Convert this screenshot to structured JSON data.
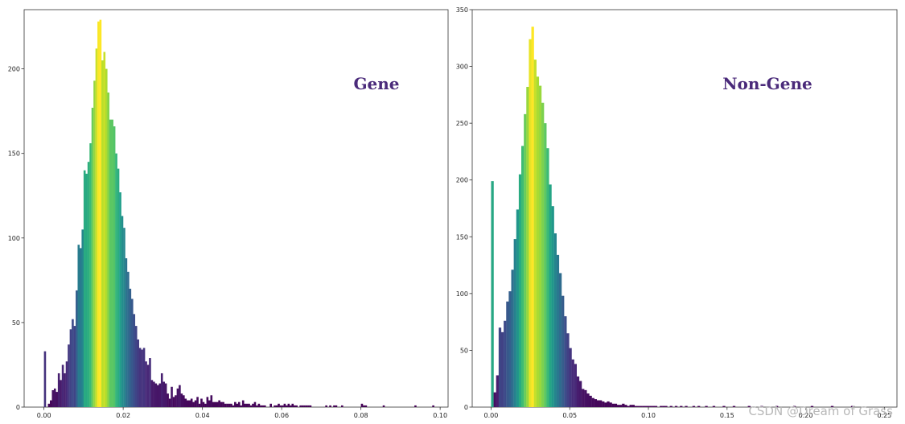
{
  "chart_data": [
    {
      "type": "bar",
      "panel": "left",
      "label": "Gene",
      "colormap": "viridis",
      "xlim": [
        -0.005,
        0.102
      ],
      "ylim": [
        0,
        235
      ],
      "bin_width": 0.0005,
      "xticks": [
        0.0,
        0.02,
        0.04,
        0.06,
        0.08,
        0.1
      ],
      "xtick_labels": [
        "0.00",
        "0.02",
        "0.04",
        "0.06",
        "0.08",
        "0.10"
      ],
      "yticks": [
        0,
        50,
        100,
        150,
        200
      ],
      "ytick_labels": [
        "0",
        "50",
        "100",
        "150",
        "200"
      ],
      "x": [
        0.0,
        0.0005,
        0.001,
        0.0015,
        0.002,
        0.0025,
        0.003,
        0.0035,
        0.004,
        0.0045,
        0.005,
        0.0055,
        0.006,
        0.0065,
        0.007,
        0.0075,
        0.008,
        0.0085,
        0.009,
        0.0095,
        0.01,
        0.0105,
        0.011,
        0.0115,
        0.012,
        0.0125,
        0.013,
        0.0135,
        0.014,
        0.0145,
        0.015,
        0.0155,
        0.016,
        0.0165,
        0.017,
        0.0175,
        0.018,
        0.0185,
        0.019,
        0.0195,
        0.02,
        0.0205,
        0.021,
        0.0215,
        0.022,
        0.0225,
        0.023,
        0.0235,
        0.024,
        0.0245,
        0.025,
        0.0255,
        0.026,
        0.0265,
        0.027,
        0.0275,
        0.028,
        0.0285,
        0.029,
        0.0295,
        0.03,
        0.0305,
        0.031,
        0.0315,
        0.032,
        0.0325,
        0.033,
        0.0335,
        0.034,
        0.0345,
        0.035,
        0.0355,
        0.036,
        0.0365,
        0.037,
        0.0375,
        0.038,
        0.0385,
        0.039,
        0.0395,
        0.04,
        0.0405,
        0.041,
        0.0415,
        0.042,
        0.0425,
        0.043,
        0.0435,
        0.044,
        0.0445,
        0.045,
        0.0455,
        0.046,
        0.0465,
        0.047,
        0.0475,
        0.048,
        0.0485,
        0.049,
        0.0495,
        0.05,
        0.0505,
        0.051,
        0.0515,
        0.052,
        0.0525,
        0.053,
        0.0535,
        0.054,
        0.0545,
        0.055,
        0.0555,
        0.056,
        0.0565,
        0.057,
        0.0575,
        0.058,
        0.0585,
        0.059,
        0.0595,
        0.06,
        0.0605,
        0.061,
        0.0615,
        0.062,
        0.0625,
        0.063,
        0.0635,
        0.064,
        0.0645,
        0.065,
        0.0655,
        0.066,
        0.0665,
        0.067,
        0.0675,
        0.068,
        0.0685,
        0.069,
        0.0695,
        0.07,
        0.0705,
        0.071,
        0.0715,
        0.072,
        0.0725,
        0.073,
        0.0735,
        0.074,
        0.0745,
        0.075,
        0.0755,
        0.076,
        0.0765,
        0.077,
        0.0775,
        0.078,
        0.0785,
        0.079,
        0.0795,
        0.08,
        0.0805,
        0.081,
        0.0815,
        0.082,
        0.0825,
        0.083,
        0.0835,
        0.084,
        0.0845,
        0.085,
        0.0855,
        0.086,
        0.0865,
        0.087,
        0.0875,
        0.088,
        0.0885,
        0.089,
        0.0895,
        0.09,
        0.0905,
        0.091,
        0.0915,
        0.092,
        0.0925,
        0.093,
        0.0935,
        0.094,
        0.0945,
        0.095,
        0.0955,
        0.096,
        0.0965,
        0.097,
        0.0975,
        0.098
      ],
      "values": [
        33,
        0,
        2,
        4,
        10,
        11,
        9,
        20,
        16,
        25,
        20,
        27,
        37,
        46,
        52,
        48,
        69,
        96,
        94,
        105,
        140,
        138,
        145,
        156,
        177,
        193,
        212,
        228,
        229,
        205,
        210,
        200,
        186,
        170,
        170,
        166,
        150,
        141,
        127,
        113,
        106,
        88,
        80,
        70,
        64,
        55,
        48,
        40,
        35,
        34,
        35,
        27,
        25,
        29,
        16,
        15,
        14,
        13,
        14,
        20,
        15,
        14,
        8,
        5,
        12,
        6,
        7,
        11,
        13,
        8,
        7,
        5,
        4,
        4,
        5,
        3,
        4,
        6,
        2,
        5,
        3,
        2,
        6,
        4,
        7,
        3,
        3,
        3,
        4,
        3,
        3,
        2,
        2,
        2,
        2,
        1,
        3,
        2,
        3,
        1,
        4,
        2,
        2,
        2,
        1,
        2,
        3,
        1,
        2,
        1,
        1,
        1,
        0,
        0,
        2,
        0,
        1,
        1,
        2,
        1,
        1,
        2,
        1,
        2,
        1,
        2,
        1,
        1,
        0,
        1,
        1,
        1,
        1,
        1,
        1,
        0,
        0,
        0,
        0,
        0,
        0,
        0,
        1,
        0,
        1,
        0,
        1,
        1,
        0,
        0,
        1,
        0,
        0,
        0,
        0,
        0,
        0,
        0,
        0,
        0,
        2,
        1,
        1,
        0,
        0,
        0,
        0,
        0,
        0,
        0,
        0,
        1,
        0,
        0,
        0,
        0,
        0,
        0,
        0,
        0,
        0,
        0,
        0,
        0,
        0,
        0,
        0,
        1,
        0,
        0,
        0,
        0,
        0,
        0,
        0,
        0,
        1
      ]
    },
    {
      "type": "bar",
      "panel": "right",
      "label": "Non-Gene",
      "colormap": "viridis",
      "xlim": [
        -0.012,
        0.258
      ],
      "ylim": [
        0,
        350
      ],
      "bin_width": 0.0016,
      "xticks": [
        0.0,
        0.05,
        0.1,
        0.15,
        0.2,
        0.25
      ],
      "xtick_labels": [
        "0.00",
        "0.05",
        "0.10",
        "0.15",
        "0.20",
        "0.25"
      ],
      "yticks": [
        0,
        50,
        100,
        150,
        200,
        250,
        300,
        350
      ],
      "ytick_labels": [
        "0",
        "50",
        "100",
        "150",
        "200",
        "250",
        "300",
        "350"
      ],
      "x": [
        0.0,
        0.0016,
        0.0032,
        0.0048,
        0.0064,
        0.008,
        0.0096,
        0.0112,
        0.0128,
        0.0144,
        0.016,
        0.0176,
        0.0192,
        0.0208,
        0.0224,
        0.024,
        0.0256,
        0.0272,
        0.0288,
        0.0304,
        0.032,
        0.0336,
        0.0352,
        0.0368,
        0.0384,
        0.04,
        0.0416,
        0.0432,
        0.0448,
        0.0464,
        0.048,
        0.0496,
        0.0512,
        0.0528,
        0.0544,
        0.056,
        0.0576,
        0.0592,
        0.0608,
        0.0624,
        0.064,
        0.0656,
        0.0672,
        0.0688,
        0.0704,
        0.072,
        0.0736,
        0.0752,
        0.0768,
        0.0784,
        0.08,
        0.0816,
        0.0832,
        0.0848,
        0.0864,
        0.088,
        0.0896,
        0.0912,
        0.0928,
        0.0944,
        0.096,
        0.0976,
        0.0992,
        0.1008,
        0.1024,
        0.104,
        0.1056,
        0.1072,
        0.1088,
        0.1104,
        0.112,
        0.1136,
        0.1152,
        0.1168,
        0.1184,
        0.12,
        0.1216,
        0.1232,
        0.1248,
        0.1264,
        0.128,
        0.1296,
        0.1312,
        0.1328,
        0.1344,
        0.136,
        0.1376,
        0.1392,
        0.1408,
        0.1424,
        0.144,
        0.1456,
        0.1472,
        0.1488,
        0.1504,
        0.152,
        0.1536,
        0.1552,
        0.1568,
        0.1584,
        0.16,
        0.1616,
        0.1632,
        0.1648,
        0.1664,
        0.168,
        0.1696,
        0.1712,
        0.1728,
        0.1744,
        0.176,
        0.1776,
        0.1792,
        0.1808,
        0.1824,
        0.184,
        0.1856,
        0.1872,
        0.1888,
        0.1904,
        0.192,
        0.1936,
        0.1952,
        0.1968,
        0.1984,
        0.2,
        0.2016,
        0.2032,
        0.2048,
        0.2064,
        0.208,
        0.2096,
        0.2112,
        0.2128,
        0.2144,
        0.216,
        0.2176,
        0.2192,
        0.2208,
        0.2224,
        0.224,
        0.2256,
        0.2272,
        0.2288,
        0.2304,
        0.232,
        0.2336,
        0.2352,
        0.2368,
        0.2384
      ],
      "values": [
        199,
        13,
        28,
        70,
        66,
        76,
        93,
        102,
        121,
        148,
        174,
        205,
        230,
        258,
        282,
        324,
        335,
        306,
        291,
        283,
        268,
        250,
        228,
        196,
        177,
        153,
        134,
        118,
        98,
        80,
        65,
        52,
        42,
        38,
        27,
        23,
        16,
        15,
        12,
        10,
        8,
        7,
        6,
        6,
        5,
        4,
        5,
        4,
        3,
        3,
        2,
        2,
        3,
        2,
        1,
        2,
        2,
        1,
        1,
        1,
        1,
        1,
        1,
        1,
        1,
        1,
        0,
        1,
        1,
        1,
        0,
        1,
        0,
        1,
        0,
        1,
        0,
        1,
        0,
        0,
        1,
        0,
        1,
        0,
        0,
        1,
        0,
        0,
        1,
        0,
        0,
        0,
        1,
        0,
        0,
        0,
        1,
        0,
        0,
        0,
        0,
        0,
        1,
        0,
        0,
        0,
        0,
        1,
        0,
        0,
        0,
        0,
        0,
        1,
        0,
        0,
        0,
        0,
        0,
        0,
        1,
        0,
        0,
        0,
        0,
        0,
        0,
        1,
        0,
        0,
        0,
        0,
        0,
        0,
        0,
        1,
        0,
        0,
        0,
        0,
        0,
        0,
        0,
        1,
        0,
        0,
        0,
        0,
        0,
        0
      ]
    }
  ],
  "watermark": "CSDN @Dream of Grass"
}
